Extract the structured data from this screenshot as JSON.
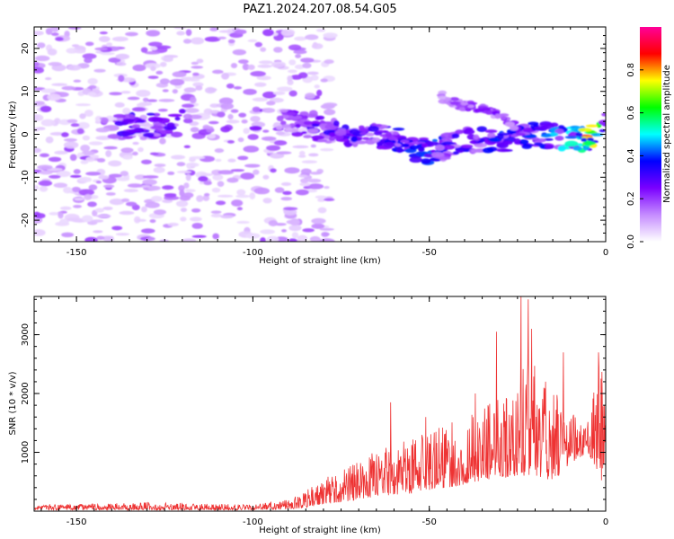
{
  "title": "PAZ1.2024.207.08.54.G05",
  "chart_data": [
    {
      "type": "heatmap",
      "xlabel": "Height of straight line (km)",
      "ylabel": "Frequency (Hz)",
      "xlim": [
        -162,
        0
      ],
      "ylim": [
        -25,
        25
      ],
      "xticks": [
        -150,
        -100,
        -50,
        0
      ],
      "yticks": [
        -20,
        -10,
        0,
        10,
        20
      ],
      "grid": false,
      "colorbar": {
        "label": "Normalized spectral amplitude",
        "range": [
          0,
          1
        ],
        "ticks": [
          0.0,
          0.2,
          0.4,
          0.6,
          0.8
        ],
        "colormap": [
          "#ffffff",
          "#c58cff",
          "#7a00ff",
          "#0000ff",
          "#00ffff",
          "#00ff00",
          "#ffff00",
          "#ff0000",
          "#ff0099"
        ]
      },
      "description_series": {
        "noise_region_x": [
          -162,
          -82
        ],
        "signal_track": {
          "x": [
            -138,
            -130,
            -125,
            -90,
            -85,
            -80,
            -70,
            -60,
            -55,
            -50,
            -45,
            -40,
            -35,
            -30,
            -25,
            -20,
            -15,
            -10,
            -5,
            0
          ],
          "y": [
            1.5,
            2,
            2.5,
            3.5,
            2,
            1,
            0,
            -1,
            -3,
            -4,
            -3,
            -1,
            -1.5,
            -2,
            -1,
            0,
            -0.5,
            -1,
            -1,
            2
          ],
          "amplitude": [
            0.3,
            0.3,
            0.25,
            0.2,
            0.25,
            0.3,
            0.3,
            0.3,
            0.4,
            0.4,
            0.3,
            0.3,
            0.3,
            0.35,
            0.3,
            0.35,
            0.4,
            0.45,
            0.75,
            0.4
          ]
        },
        "upper_branch": {
          "x": [
            -47,
            -42,
            -35,
            -30,
            -25
          ],
          "y": [
            9,
            7,
            6,
            4,
            2
          ],
          "amplitude": [
            0.12,
            0.18,
            0.2,
            0.2,
            0.2
          ]
        }
      }
    },
    {
      "type": "line",
      "xlabel": "Height of straight line (km)",
      "ylabel": "SNR (10 * v/v)",
      "xlim": [
        -162,
        0
      ],
      "ylim": [
        0,
        3650
      ],
      "xticks": [
        -150,
        -100,
        -50,
        0
      ],
      "yticks": [
        1000,
        2000,
        3000
      ],
      "grid": false,
      "series": [
        {
          "color": "#ee3333",
          "envelope": {
            "x": [
              -162,
              -140,
              -130,
              -120,
              -110,
              -100,
              -90,
              -85,
              -80,
              -75,
              -70,
              -65,
              -60,
              -55,
              -50,
              -45,
              -40,
              -35,
              -30,
              -25,
              -20,
              -15,
              -10,
              -5,
              -1,
              0
            ],
            "low": [
              20,
              20,
              20,
              20,
              20,
              20,
              30,
              60,
              120,
              150,
              200,
              250,
              280,
              300,
              350,
              400,
              450,
              500,
              550,
              600,
              600,
              500,
              800,
              1000,
              500,
              1100
            ],
            "high": [
              110,
              130,
              150,
              140,
              120,
              110,
              200,
              350,
              550,
              700,
              900,
              1050,
              1150,
              1250,
              1350,
              1500,
              1650,
              1800,
              2100,
              2400,
              2600,
              2200,
              1700,
              1600,
              2700,
              1450
            ]
          },
          "peaks": {
            "x": [
              -61,
              -51,
              -37,
              -31,
              -24,
              -22,
              -21,
              -17,
              -12,
              -2
            ],
            "y": [
              1850,
              1600,
              2000,
              3050,
              3650,
              3600,
              3100,
              2200,
              2700,
              2700
            ]
          }
        }
      ]
    }
  ]
}
